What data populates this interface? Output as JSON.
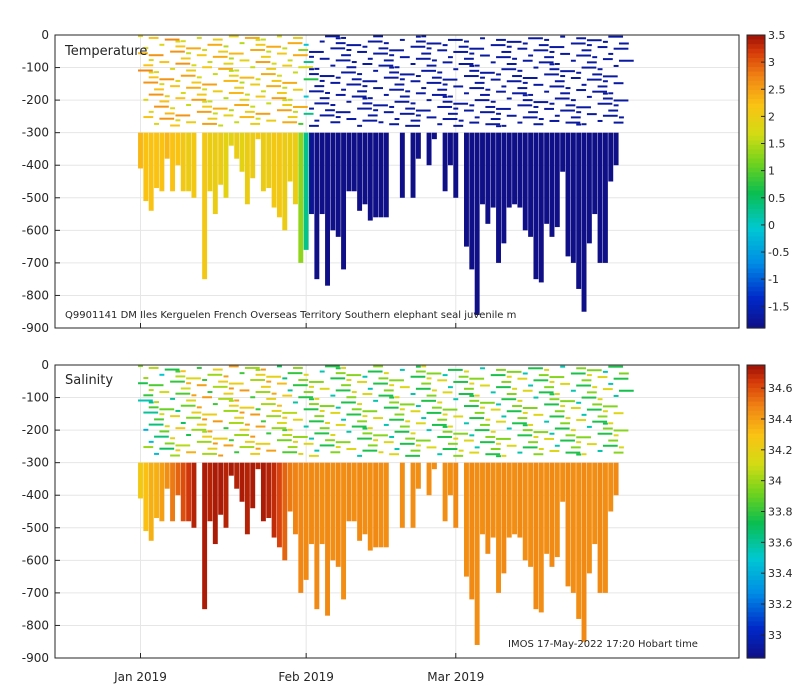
{
  "chart_data": [
    {
      "type": "heatmap",
      "panel_label": "Temperature",
      "annotation": "Q9901141 DM Iles Kerguelen French Overseas Territory Southern elephant seal juvenile m",
      "ylabel": "",
      "xlabel": "",
      "ylim": [
        -900,
        0
      ],
      "yticks": [
        0,
        -100,
        -200,
        -300,
        -400,
        -500,
        -600,
        -700,
        -800,
        -900
      ],
      "colorbar": {
        "min": -1.9,
        "max": 3.5,
        "ticks": [
          3.5,
          3,
          2.5,
          2,
          1.5,
          1,
          0.5,
          0,
          -0.5,
          -1,
          -1.5
        ]
      },
      "deep_profiles": {
        "day": [
          0,
          1,
          2,
          3,
          4,
          5,
          6,
          7,
          8,
          9,
          10,
          11,
          12,
          13,
          14,
          15,
          16,
          17,
          18,
          19,
          20,
          21,
          22,
          23,
          24,
          25,
          26,
          27,
          28,
          29,
          30,
          31,
          32,
          33,
          34,
          35,
          36,
          37,
          38,
          39,
          40,
          41,
          42,
          43,
          44,
          45,
          46,
          47,
          48,
          49,
          50,
          51,
          52,
          53,
          54,
          55,
          56,
          57,
          58,
          59,
          60,
          61,
          62,
          63,
          64,
          65,
          66,
          67,
          68,
          69,
          70,
          71,
          72,
          73,
          74,
          75,
          76,
          77,
          78,
          79,
          80,
          81,
          82,
          83,
          84,
          85,
          86,
          87,
          88,
          89,
          90
        ],
        "max_depth": [
          410,
          510,
          540,
          470,
          480,
          380,
          480,
          400,
          480,
          480,
          500,
          300,
          750,
          480,
          550,
          460,
          500,
          340,
          380,
          420,
          520,
          440,
          320,
          480,
          470,
          530,
          560,
          600,
          450,
          520,
          700,
          660,
          550,
          750,
          550,
          770,
          600,
          620,
          720,
          480,
          480,
          540,
          520,
          570,
          560,
          560,
          560,
          300,
          300,
          500,
          300,
          500,
          380,
          300,
          400,
          320,
          300,
          480,
          400,
          500,
          300,
          650,
          720,
          860,
          520,
          580,
          530,
          700,
          640,
          530,
          520,
          530,
          600,
          620,
          750,
          760,
          580,
          620,
          590,
          420,
          680,
          700,
          780,
          850,
          640,
          550,
          700,
          700,
          450,
          400,
          300
        ],
        "value": [
          2.3,
          2.2,
          2.2,
          2.2,
          2.2,
          2.3,
          2.2,
          2.2,
          2.1,
          2.0,
          2.1,
          2.1,
          2.1,
          2.0,
          2.0,
          2.0,
          1.9,
          1.9,
          2.0,
          1.9,
          2.0,
          2.0,
          2.1,
          2.0,
          2.0,
          2.1,
          2.1,
          2.0,
          2.0,
          2.0,
          1.3,
          0.3,
          -1.8,
          -1.9,
          -1.9,
          -1.9,
          -1.9,
          -1.9,
          -1.9,
          -1.9,
          -1.9,
          -1.9,
          -1.9,
          -1.9,
          -1.9,
          -1.9,
          -1.9,
          -1.9,
          -1.9,
          -1.9,
          -1.9,
          -1.9,
          -1.9,
          -1.9,
          -1.9,
          -1.9,
          -1.9,
          -1.9,
          -1.9,
          -1.9,
          -1.9,
          -1.9,
          -1.9,
          -1.9,
          -1.9,
          -1.9,
          -1.9,
          -1.9,
          -1.9,
          -1.9,
          -1.9,
          -1.9,
          -1.9,
          -1.9,
          -1.9,
          -1.9,
          -1.9,
          -1.9,
          -1.9,
          -1.9,
          -1.9,
          -1.9,
          -1.9,
          -1.9,
          -1.9,
          -1.9,
          -1.9,
          -1.9,
          -1.9,
          -1.9,
          -0.5
        ]
      }
    },
    {
      "type": "heatmap",
      "panel_label": "Salinity",
      "annotation": "IMOS 17-May-2022 17:20 Hobart time",
      "ylabel": "",
      "xlabel": "",
      "ylim": [
        -900,
        0
      ],
      "yticks": [
        0,
        -100,
        -200,
        -300,
        -400,
        -500,
        -600,
        -700,
        -800,
        -900
      ],
      "colorbar": {
        "min": 32.85,
        "max": 34.75,
        "ticks": [
          34.6,
          34.4,
          34.2,
          34,
          33.8,
          33.6,
          33.4,
          33.2,
          33
        ]
      },
      "deep_profiles": {
        "day": [
          0,
          1,
          2,
          3,
          4,
          5,
          6,
          7,
          8,
          9,
          10,
          11,
          12,
          13,
          14,
          15,
          16,
          17,
          18,
          19,
          20,
          21,
          22,
          23,
          24,
          25,
          26,
          27,
          28,
          29,
          30,
          31,
          32,
          33,
          34,
          35,
          36,
          37,
          38,
          39,
          40,
          41,
          42,
          43,
          44,
          45,
          46,
          47,
          48,
          49,
          50,
          51,
          52,
          53,
          54,
          55,
          56,
          57,
          58,
          59,
          60,
          61,
          62,
          63,
          64,
          65,
          66,
          67,
          68,
          69,
          70,
          71,
          72,
          73,
          74,
          75,
          76,
          77,
          78,
          79,
          80,
          81,
          82,
          83,
          84,
          85,
          86,
          87,
          88,
          89,
          90
        ],
        "max_depth": [
          410,
          510,
          540,
          470,
          480,
          380,
          480,
          400,
          480,
          480,
          500,
          300,
          750,
          480,
          550,
          460,
          500,
          340,
          380,
          420,
          520,
          440,
          320,
          480,
          470,
          530,
          560,
          600,
          450,
          520,
          700,
          660,
          550,
          750,
          550,
          770,
          600,
          620,
          720,
          480,
          480,
          540,
          520,
          570,
          560,
          560,
          560,
          300,
          300,
          500,
          300,
          500,
          380,
          300,
          400,
          320,
          300,
          480,
          400,
          500,
          300,
          650,
          720,
          860,
          520,
          580,
          530,
          700,
          640,
          530,
          520,
          530,
          600,
          620,
          750,
          760,
          580,
          620,
          590,
          420,
          680,
          700,
          780,
          850,
          640,
          550,
          700,
          700,
          450,
          400,
          300
        ],
        "value": [
          34.25,
          34.3,
          34.35,
          34.35,
          34.4,
          34.45,
          34.5,
          34.55,
          34.6,
          34.65,
          34.7,
          34.7,
          34.72,
          34.7,
          34.72,
          34.72,
          34.7,
          34.72,
          34.7,
          34.72,
          34.7,
          34.72,
          34.7,
          34.72,
          34.7,
          34.68,
          34.62,
          34.55,
          34.5,
          34.48,
          34.47,
          34.46,
          34.46,
          34.46,
          34.45,
          34.46,
          34.45,
          34.46,
          34.45,
          34.46,
          34.45,
          34.46,
          34.45,
          34.45,
          34.46,
          34.45,
          34.45,
          34.46,
          34.45,
          34.45,
          34.46,
          34.45,
          34.45,
          34.46,
          34.45,
          34.45,
          34.46,
          34.45,
          34.45,
          34.46,
          34.45,
          34.45,
          34.46,
          34.45,
          34.45,
          34.46,
          34.45,
          34.45,
          34.46,
          34.45,
          34.45,
          34.46,
          34.45,
          34.45,
          34.46,
          34.45,
          34.45,
          34.46,
          34.45,
          34.45,
          34.46,
          34.45,
          34.45,
          34.46,
          34.45,
          34.45,
          34.46,
          34.45,
          34.45,
          34.46,
          34.44
        ]
      }
    }
  ],
  "x_axis": {
    "range_days": [
      -16,
      112
    ],
    "ticks": [
      {
        "label": "Jan 2019",
        "day": 0
      },
      {
        "label": "Feb 2019",
        "day": 31
      },
      {
        "label": "Mar 2019",
        "day": 59
      }
    ]
  },
  "colors": {
    "background": "#ffffff",
    "grid": "#e6e6e6",
    "axis": "#262626"
  }
}
